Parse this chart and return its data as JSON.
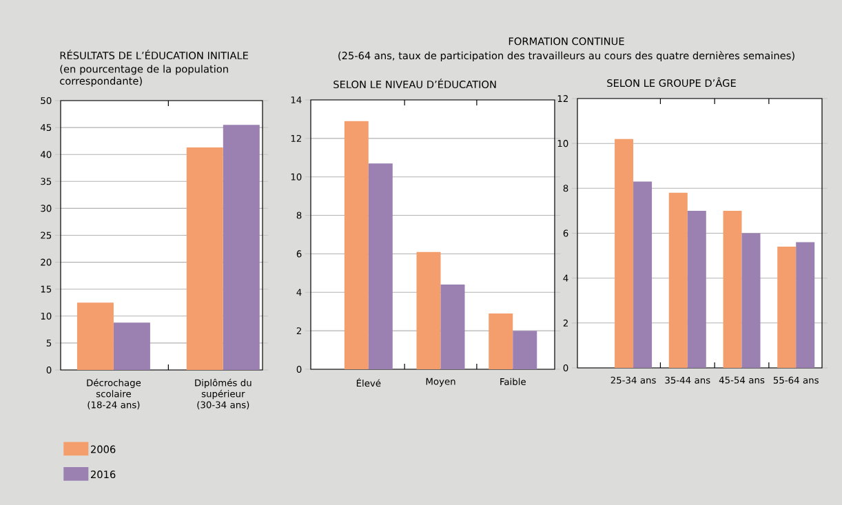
{
  "chart_data": [
    {
      "type": "bar",
      "title": "RÉSULTATS DE L’ÉDUCATION INITIALE",
      "subtitle": "(en pourcentage de la population correspondante)",
      "categories": [
        "Décrochage scolaire (18-24 ans)",
        "Diplômés du supérieur (30-34 ans)"
      ],
      "series": [
        {
          "name": "2006",
          "color": "#f49e6e",
          "values": [
            12.5,
            41.3
          ]
        },
        {
          "name": "2016",
          "color": "#9b81b1",
          "values": [
            8.8,
            45.5
          ]
        }
      ],
      "ylim": [
        0,
        50
      ],
      "yticks": [
        0,
        5,
        10,
        15,
        20,
        25,
        30,
        35,
        40,
        45,
        50
      ],
      "grid": "y",
      "legend": "bottom left"
    },
    {
      "type": "bar",
      "title": "SELON LE NIVEAU D’ÉDUCATION",
      "annotations": [
        "FORMATION CONTINUE",
        "(25-64 ans, taux de participation des travailleurs au cours des quatre dernières semaines)"
      ],
      "categories": [
        "Élevé",
        "Moyen",
        "Faible"
      ],
      "series": [
        {
          "color": "#f49e6e",
          "values": [
            12.9,
            6.1,
            2.9
          ]
        },
        {
          "color": "#9b81b1",
          "values": [
            10.7,
            4.4,
            2.0
          ]
        }
      ],
      "ylim": [
        0,
        14
      ],
      "yticks": [
        0,
        2,
        4,
        6,
        8,
        10,
        12,
        14
      ],
      "grid": "y"
    },
    {
      "type": "bar",
      "title": "SELON LE GROUPE D’ÂGE",
      "categories": [
        "25-34 ans",
        "35-44 ans",
        "45-54 ans",
        "55-64 ans"
      ],
      "series": [
        {
          "color": "#f49e6e",
          "values": [
            10.2,
            7.8,
            7.0,
            5.4
          ]
        },
        {
          "color": "#9b81b1",
          "values": [
            8.3,
            7.0,
            6.0,
            5.6
          ]
        }
      ],
      "ylim": [
        0,
        12
      ],
      "yticks": [
        0,
        2,
        4,
        6,
        8,
        10,
        12
      ],
      "grid": "y"
    }
  ]
}
